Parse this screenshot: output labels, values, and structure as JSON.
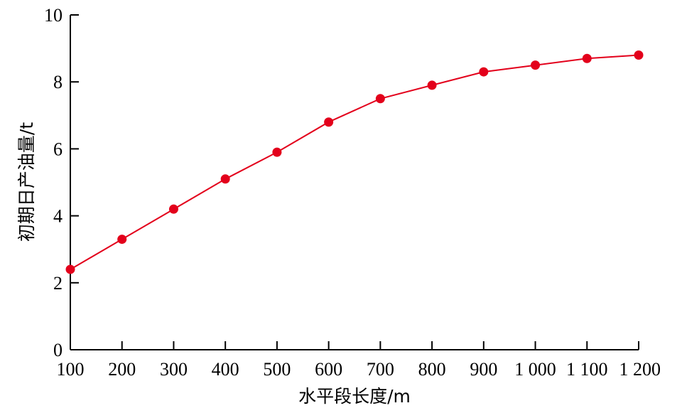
{
  "chart_data": {
    "type": "line",
    "xlabel": "水平段长度/m",
    "ylabel": "初期日产油量/t",
    "x": [
      100,
      200,
      300,
      400,
      500,
      600,
      700,
      800,
      900,
      1000,
      1100,
      1200
    ],
    "x_tick_labels": [
      "100",
      "200",
      "300",
      "400",
      "500",
      "600",
      "700",
      "800",
      "900",
      "1 000",
      "1 100",
      "1 200"
    ],
    "y_ticks": [
      0,
      2,
      4,
      6,
      8,
      10
    ],
    "y_tick_labels": [
      "0",
      "2",
      "4",
      "6",
      "8",
      "10"
    ],
    "xlim": [
      100,
      1200
    ],
    "ylim": [
      0,
      10
    ],
    "grid": false,
    "series": [
      {
        "values": [
          2.4,
          3.3,
          4.2,
          5.1,
          5.9,
          6.8,
          7.5,
          7.9,
          8.3,
          8.5,
          8.7,
          8.8
        ],
        "color": "#e3001b",
        "marker": "circle"
      }
    ]
  }
}
